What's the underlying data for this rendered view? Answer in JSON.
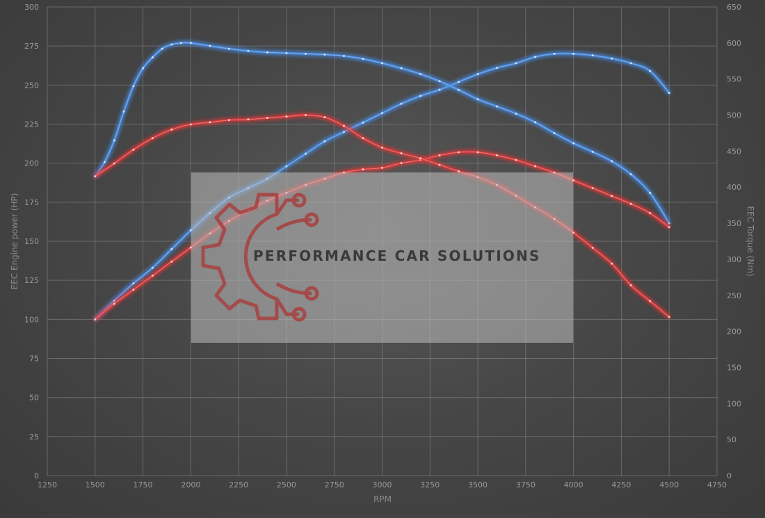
{
  "watermark": {
    "text": "PERFORMANCE CAR SOLUTIONS",
    "logo_icon": "gear-circuit-logo-icon"
  },
  "colors": {
    "tuned": "#4a8ee6",
    "stock": "#e23a3a",
    "background": "#474747",
    "grid": "#8c8c8c"
  },
  "chart_data": {
    "type": "line",
    "title": "",
    "xlabel": "RPM",
    "ylabel_left": "EEC Engine power (HP)",
    "ylabel_right": "EEC Torque (Nm)",
    "xlim": [
      1250,
      4750
    ],
    "ylim_left": [
      0,
      300
    ],
    "ylim_right": [
      0,
      650
    ],
    "x_ticks": [
      1250,
      1500,
      1750,
      2000,
      2250,
      2500,
      2750,
      3000,
      3250,
      3500,
      3750,
      4000,
      4250,
      4500,
      4750
    ],
    "y_ticks_left": [
      0,
      25,
      50,
      75,
      100,
      125,
      150,
      175,
      200,
      225,
      250,
      275,
      300
    ],
    "y_ticks_right": [
      0,
      50,
      100,
      150,
      200,
      250,
      300,
      350,
      400,
      450,
      500,
      550,
      600,
      650
    ],
    "grid": true,
    "series": [
      {
        "axis": "left",
        "color": "#4a8ee6",
        "points": [
          [
            1500,
            100
          ],
          [
            1600,
            112
          ],
          [
            1700,
            123
          ],
          [
            1800,
            133
          ],
          [
            1900,
            145
          ],
          [
            2000,
            157
          ],
          [
            2100,
            168
          ],
          [
            2200,
            178
          ],
          [
            2300,
            184
          ],
          [
            2400,
            190
          ],
          [
            2500,
            198
          ],
          [
            2600,
            206
          ],
          [
            2700,
            214
          ],
          [
            2800,
            220
          ],
          [
            2900,
            226
          ],
          [
            3000,
            232
          ],
          [
            3100,
            238
          ],
          [
            3200,
            243
          ],
          [
            3300,
            247
          ],
          [
            3400,
            252
          ],
          [
            3500,
            257
          ],
          [
            3600,
            261
          ],
          [
            3700,
            264
          ],
          [
            3800,
            268
          ],
          [
            3900,
            270
          ],
          [
            4000,
            270
          ],
          [
            4100,
            269
          ],
          [
            4200,
            267
          ],
          [
            4300,
            264
          ],
          [
            4400,
            259
          ],
          [
            4500,
            245
          ]
        ]
      },
      {
        "axis": "right",
        "color": "#4a8ee6",
        "points": [
          [
            1500,
            415
          ],
          [
            1550,
            435
          ],
          [
            1600,
            465
          ],
          [
            1650,
            505
          ],
          [
            1700,
            540
          ],
          [
            1750,
            565
          ],
          [
            1800,
            580
          ],
          [
            1850,
            592
          ],
          [
            1900,
            598
          ],
          [
            1950,
            600
          ],
          [
            2000,
            600
          ],
          [
            2100,
            596
          ],
          [
            2200,
            592
          ],
          [
            2300,
            589
          ],
          [
            2400,
            587
          ],
          [
            2500,
            586
          ],
          [
            2600,
            585
          ],
          [
            2700,
            584
          ],
          [
            2800,
            582
          ],
          [
            2900,
            578
          ],
          [
            3000,
            572
          ],
          [
            3100,
            565
          ],
          [
            3200,
            557
          ],
          [
            3300,
            547
          ],
          [
            3400,
            535
          ],
          [
            3500,
            522
          ],
          [
            3600,
            512
          ],
          [
            3700,
            502
          ],
          [
            3800,
            490
          ],
          [
            3900,
            475
          ],
          [
            4000,
            461
          ],
          [
            4100,
            449
          ],
          [
            4200,
            436
          ],
          [
            4300,
            418
          ],
          [
            4400,
            392
          ],
          [
            4500,
            350
          ]
        ]
      },
      {
        "axis": "left",
        "color": "#e23a3a",
        "points": [
          [
            1500,
            100
          ],
          [
            1600,
            110
          ],
          [
            1700,
            119
          ],
          [
            1800,
            128
          ],
          [
            1900,
            137
          ],
          [
            2000,
            146
          ],
          [
            2100,
            155
          ],
          [
            2200,
            163
          ],
          [
            2300,
            170
          ],
          [
            2400,
            176
          ],
          [
            2500,
            181
          ],
          [
            2600,
            186
          ],
          [
            2700,
            190
          ],
          [
            2800,
            194
          ],
          [
            2900,
            196
          ],
          [
            3000,
            197
          ],
          [
            3100,
            200
          ],
          [
            3200,
            202
          ],
          [
            3300,
            205
          ],
          [
            3400,
            207
          ],
          [
            3500,
            207
          ],
          [
            3600,
            205
          ],
          [
            3700,
            202
          ],
          [
            3800,
            198
          ],
          [
            3900,
            194
          ],
          [
            4000,
            189
          ],
          [
            4100,
            184
          ],
          [
            4200,
            179
          ],
          [
            4300,
            174
          ],
          [
            4400,
            168
          ],
          [
            4500,
            159
          ]
        ]
      },
      {
        "axis": "right",
        "color": "#e23a3a",
        "points": [
          [
            1500,
            415
          ],
          [
            1600,
            433
          ],
          [
            1700,
            452
          ],
          [
            1800,
            468
          ],
          [
            1900,
            480
          ],
          [
            2000,
            487
          ],
          [
            2100,
            490
          ],
          [
            2200,
            493
          ],
          [
            2300,
            494
          ],
          [
            2400,
            496
          ],
          [
            2500,
            498
          ],
          [
            2600,
            500
          ],
          [
            2700,
            497
          ],
          [
            2800,
            485
          ],
          [
            2900,
            468
          ],
          [
            3000,
            455
          ],
          [
            3100,
            447
          ],
          [
            3200,
            440
          ],
          [
            3300,
            431
          ],
          [
            3400,
            422
          ],
          [
            3500,
            414
          ],
          [
            3600,
            403
          ],
          [
            3700,
            388
          ],
          [
            3800,
            372
          ],
          [
            3900,
            356
          ],
          [
            4000,
            337
          ],
          [
            4100,
            316
          ],
          [
            4200,
            294
          ],
          [
            4300,
            264
          ],
          [
            4400,
            242
          ],
          [
            4500,
            220
          ]
        ]
      }
    ]
  }
}
